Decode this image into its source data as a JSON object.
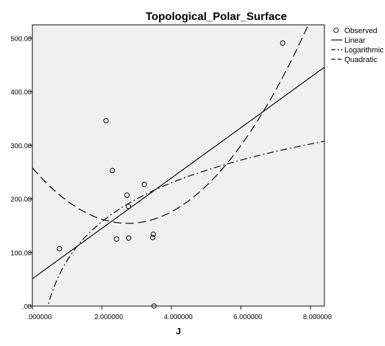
{
  "chart_data": {
    "type": "scatter",
    "title": "Topological_Polar_Surface",
    "xlabel": "J",
    "ylabel": "",
    "xlim": [
      0,
      8.4
    ],
    "ylim": [
      0,
      525
    ],
    "x_ticks": [
      0,
      2,
      4,
      6,
      8
    ],
    "x_tick_labels": [
      ".000000",
      "2.000000",
      "4.000000",
      "6.000000",
      "8.000000"
    ],
    "y_ticks": [
      0,
      100,
      200,
      300,
      400,
      500
    ],
    "y_tick_labels": [
      ".00",
      "100.00",
      "200.00",
      "300.00",
      "400.00",
      "500.00"
    ],
    "grid": false,
    "legend_position": "right",
    "colors": {
      "plot_background": "#f0f0f0",
      "line": "#000000"
    },
    "observed": {
      "name": "Observed",
      "points": [
        {
          "x": 0.78,
          "y": 107
        },
        {
          "x": 2.12,
          "y": 346
        },
        {
          "x": 2.3,
          "y": 253
        },
        {
          "x": 2.42,
          "y": 125
        },
        {
          "x": 2.72,
          "y": 207
        },
        {
          "x": 2.76,
          "y": 186
        },
        {
          "x": 2.77,
          "y": 127
        },
        {
          "x": 3.22,
          "y": 227
        },
        {
          "x": 3.46,
          "y": 128
        },
        {
          "x": 3.48,
          "y": 134
        },
        {
          "x": 3.5,
          "y": 0
        },
        {
          "x": 7.2,
          "y": 491
        }
      ]
    },
    "series": [
      {
        "name": "Linear",
        "dash": "solid",
        "model": "linear",
        "coef": {
          "a": 51,
          "b": 47
        }
      },
      {
        "name": "Logarithmic",
        "dash": "dashdot",
        "model": "logarithmic",
        "coef": {
          "a": 85,
          "b": 104.6
        }
      },
      {
        "name": "Quadratic",
        "dash": "dashed",
        "model": "quadratic",
        "coef": {
          "a": 258,
          "b": -75.5,
          "c": 13.75
        }
      }
    ]
  }
}
